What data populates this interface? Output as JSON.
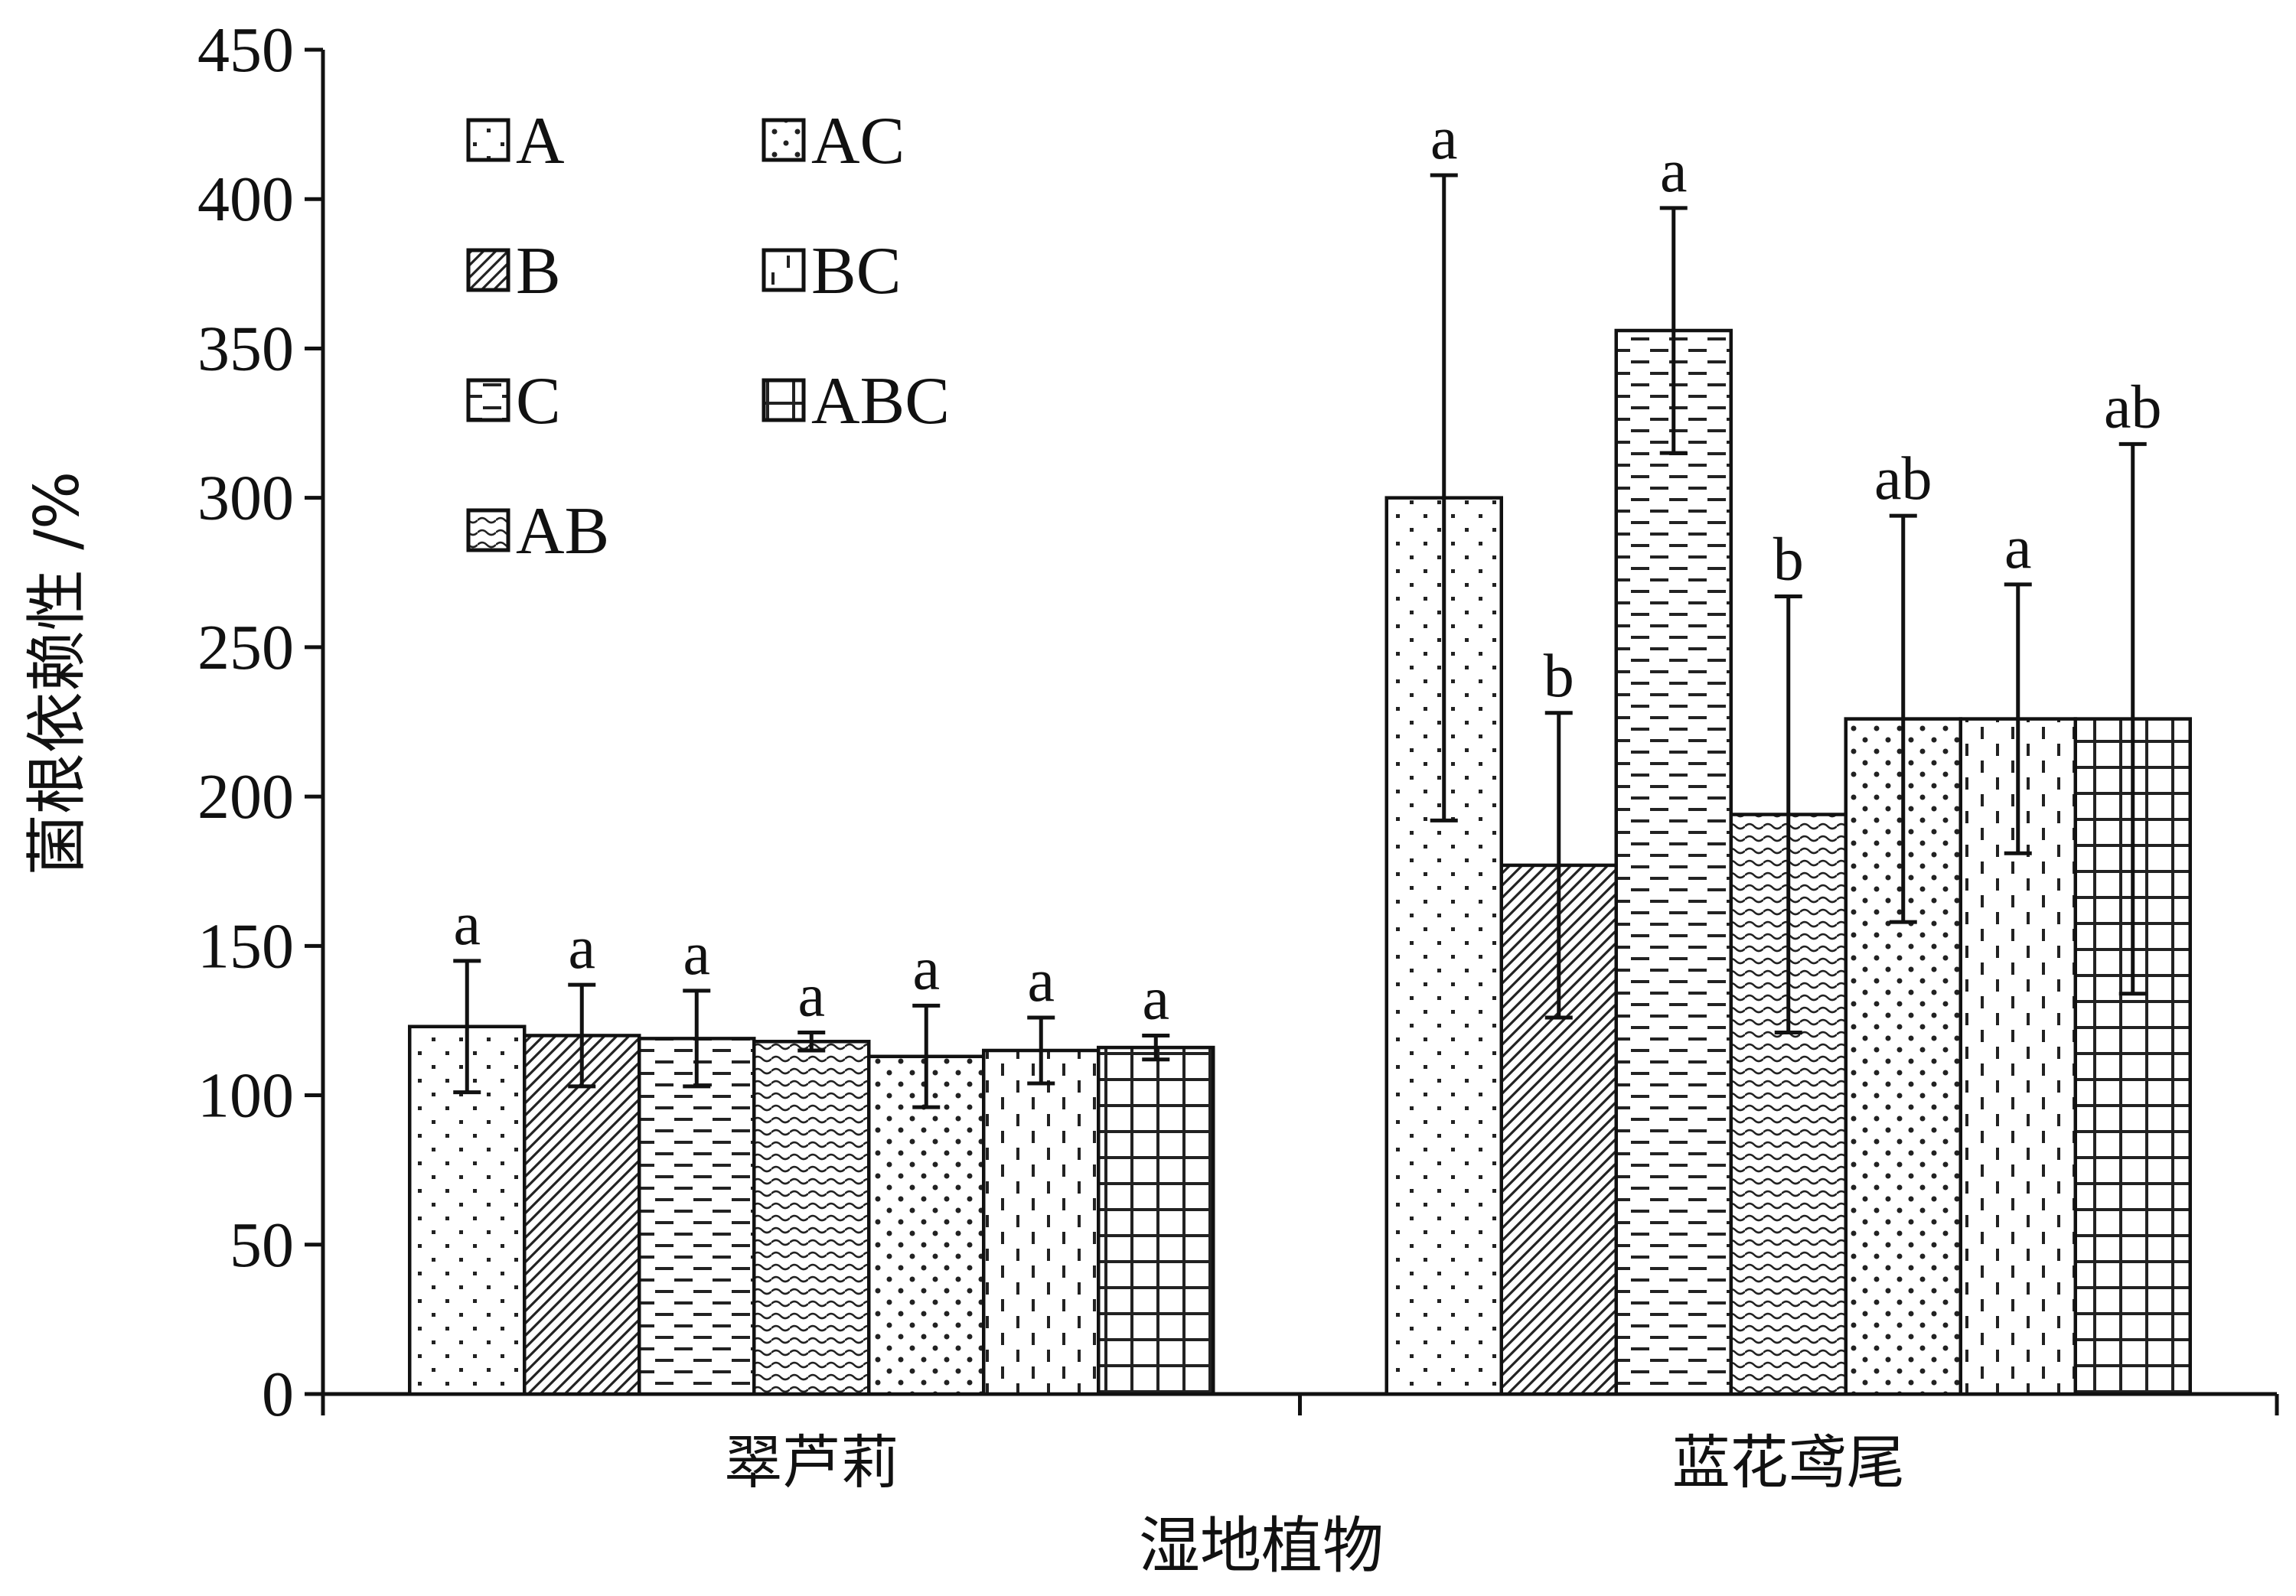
{
  "chart_data": {
    "type": "bar",
    "ylabel": "菌根依赖性 /%",
    "xlabel": "湿地植物",
    "ylim": [
      0,
      450
    ],
    "yticks": [
      0,
      50,
      100,
      150,
      200,
      250,
      300,
      350,
      400,
      450
    ],
    "categories": [
      "翠芦莉",
      "蓝花鸢尾"
    ],
    "grid": false,
    "legend": {
      "placement": "top-left",
      "columns": 2
    },
    "series": [
      {
        "name": "A",
        "pattern": "dots",
        "values": [
          123,
          300
        ],
        "errors": [
          22,
          108
        ],
        "sig": [
          "a",
          "a"
        ]
      },
      {
        "name": "B",
        "pattern": "diagonal",
        "values": [
          120,
          177
        ],
        "errors": [
          17,
          51
        ],
        "sig": [
          "a",
          "b"
        ]
      },
      {
        "name": "C",
        "pattern": "dashes",
        "values": [
          119,
          356
        ],
        "errors": [
          16,
          41
        ],
        "sig": [
          "a",
          "a"
        ]
      },
      {
        "name": "AB",
        "pattern": "waves",
        "values": [
          118,
          194
        ],
        "errors": [
          3,
          73
        ],
        "sig": [
          "a",
          "b"
        ]
      },
      {
        "name": "AC",
        "pattern": "dots-dense",
        "values": [
          113,
          226
        ],
        "errors": [
          17,
          68
        ],
        "sig": [
          "a",
          "ab"
        ]
      },
      {
        "name": "BC",
        "pattern": "vdashes",
        "values": [
          115,
          226
        ],
        "errors": [
          11,
          45
        ],
        "sig": [
          "a",
          "a"
        ]
      },
      {
        "name": "ABC",
        "pattern": "grid",
        "values": [
          116,
          226
        ],
        "errors": [
          4,
          92
        ],
        "sig": [
          "a",
          "ab"
        ]
      }
    ],
    "legend_order": [
      "A",
      "B",
      "C",
      "AB",
      "AC",
      "BC",
      "ABC"
    ]
  }
}
